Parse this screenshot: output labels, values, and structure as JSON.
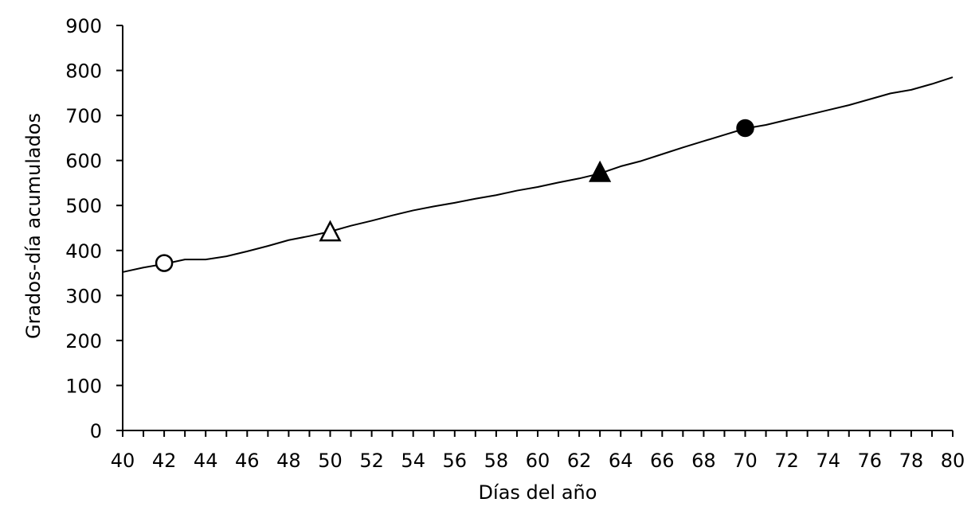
{
  "chart_data": {
    "type": "line",
    "title": "",
    "xlabel": "Días del año",
    "ylabel": "Grados-día acumulados",
    "xlim": [
      40,
      80
    ],
    "ylim": [
      0,
      900
    ],
    "x_ticks": [
      "40",
      "42",
      "44",
      "46",
      "48",
      "50",
      "52",
      "54",
      "56",
      "58",
      "60",
      "62",
      "64",
      "66",
      "68",
      "70",
      "72",
      "74",
      "76",
      "78",
      "80"
    ],
    "y_ticks": [
      "0",
      "100",
      "200",
      "300",
      "400",
      "500",
      "600",
      "700",
      "800",
      "900"
    ],
    "grid": false,
    "series": [
      {
        "x": [
          40,
          41,
          42,
          43,
          44,
          45,
          46,
          47,
          48,
          49,
          50,
          51,
          52,
          53,
          54,
          55,
          56,
          57,
          58,
          59,
          60,
          61,
          62,
          63,
          64,
          65,
          66,
          67,
          68,
          69,
          70,
          71,
          72,
          73,
          74,
          75,
          76,
          77,
          78,
          79,
          80
        ],
        "y": [
          352,
          362,
          370,
          380,
          380,
          387,
          398,
          410,
          423,
          432,
          442,
          455,
          466,
          478,
          489,
          498,
          506,
          515,
          523,
          533,
          541,
          551,
          560,
          571,
          587,
          599,
          614,
          629,
          643,
          657,
          671,
          679,
          690,
          701,
          712,
          723,
          736,
          749,
          757,
          770,
          785
        ]
      }
    ],
    "markers": [
      {
        "x": 42,
        "y": 372,
        "symbol": "circle",
        "fill": "none"
      },
      {
        "x": 50,
        "y": 440,
        "symbol": "triangle",
        "fill": "none"
      },
      {
        "x": 63,
        "y": 572,
        "symbol": "triangle",
        "fill": "#000000"
      },
      {
        "x": 70,
        "y": 672,
        "symbol": "circle",
        "fill": "#000000"
      }
    ]
  }
}
